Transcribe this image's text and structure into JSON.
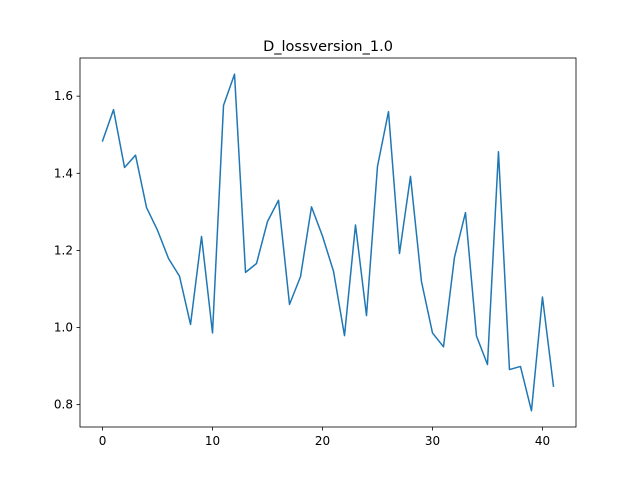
{
  "chart_data": {
    "type": "line",
    "title": "D_lossversion_1.0",
    "xlabel": "",
    "ylabel": "",
    "xlim": [
      -2.05,
      43.05
    ],
    "ylim": [
      0.742,
      1.699
    ],
    "xticks": [
      0,
      10,
      20,
      30,
      40
    ],
    "yticks": [
      0.8,
      1.0,
      1.2,
      1.4,
      1.6
    ],
    "ytick_labels": [
      "0.8",
      "1.0",
      "1.2",
      "1.4",
      "1.6"
    ],
    "grid": false,
    "line_color": "#1f77b4",
    "series": [
      {
        "x": [
          0,
          1,
          2,
          3,
          4,
          5,
          6,
          7,
          8,
          9,
          10,
          11,
          12,
          13,
          14,
          15,
          16,
          17,
          18,
          19,
          20,
          21,
          22,
          23,
          24,
          25,
          26,
          27,
          28,
          29,
          30,
          31,
          32,
          33,
          34,
          35,
          36,
          37,
          38,
          39,
          40,
          41
        ],
        "values": [
          1.484,
          1.565,
          1.415,
          1.447,
          1.311,
          1.252,
          1.179,
          1.133,
          1.008,
          1.236,
          0.986,
          1.576,
          1.657,
          1.143,
          1.166,
          1.275,
          1.33,
          1.06,
          1.132,
          1.313,
          1.237,
          1.146,
          0.979,
          1.266,
          1.031,
          1.418,
          1.56,
          1.192,
          1.392,
          1.119,
          0.986,
          0.95,
          1.182,
          1.298,
          0.978,
          0.904,
          1.456,
          0.891,
          0.899,
          0.784,
          1.079,
          0.848
        ]
      }
    ]
  }
}
